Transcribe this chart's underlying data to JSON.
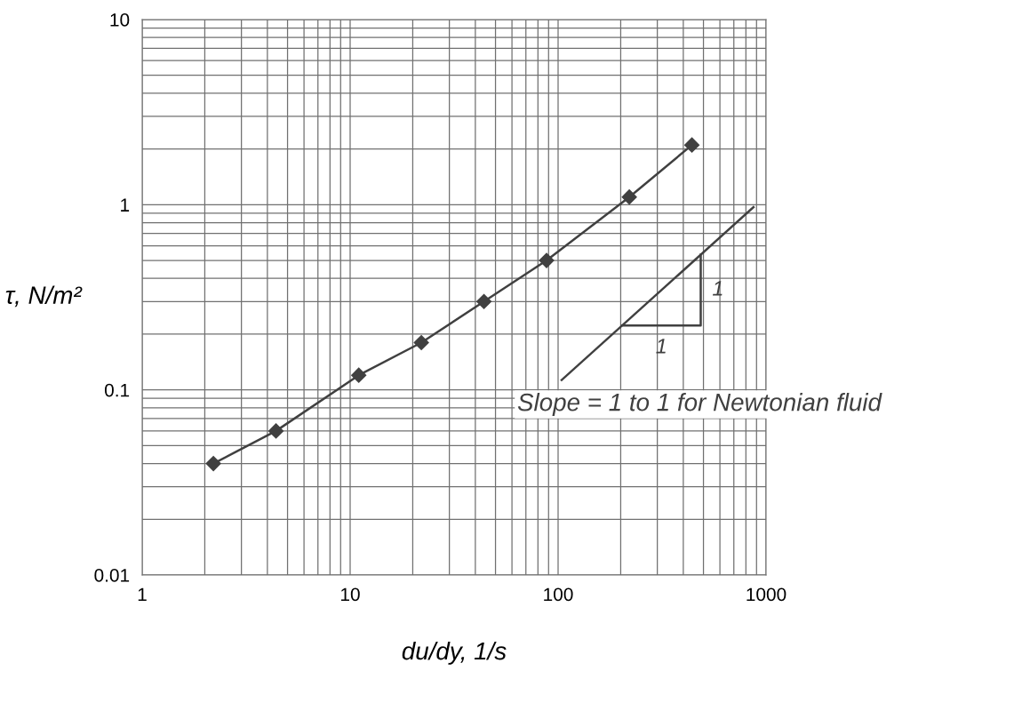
{
  "chart_data": {
    "type": "line",
    "xlabel": "du/dy, 1/s",
    "ylabel": "τ, N/m²",
    "log": "xy",
    "xlim": [
      1,
      1000
    ],
    "ylim": [
      0.01,
      10
    ],
    "xticks": [
      1,
      10,
      100,
      1000
    ],
    "yticks": [
      0.01,
      0.1,
      1,
      10
    ],
    "grid": true,
    "series": [
      {
        "color": "#404040",
        "x": [
          2.2,
          4.4,
          11,
          22,
          44,
          88,
          220,
          440
        ],
        "values": [
          0.04,
          0.06,
          0.12,
          0.18,
          0.3,
          0.5,
          1.1,
          2.1
        ],
        "marker": "diamond",
        "line_style": "solid"
      },
      {
        "color": "#404040",
        "x": [
          104,
          870
        ],
        "values": [
          0.113,
          0.97
        ],
        "marker": "none",
        "line_style": "solid"
      }
    ],
    "annotations": [
      "1",
      "1",
      "Slope = 1 to 1 for Newtonian fluid"
    ]
  }
}
